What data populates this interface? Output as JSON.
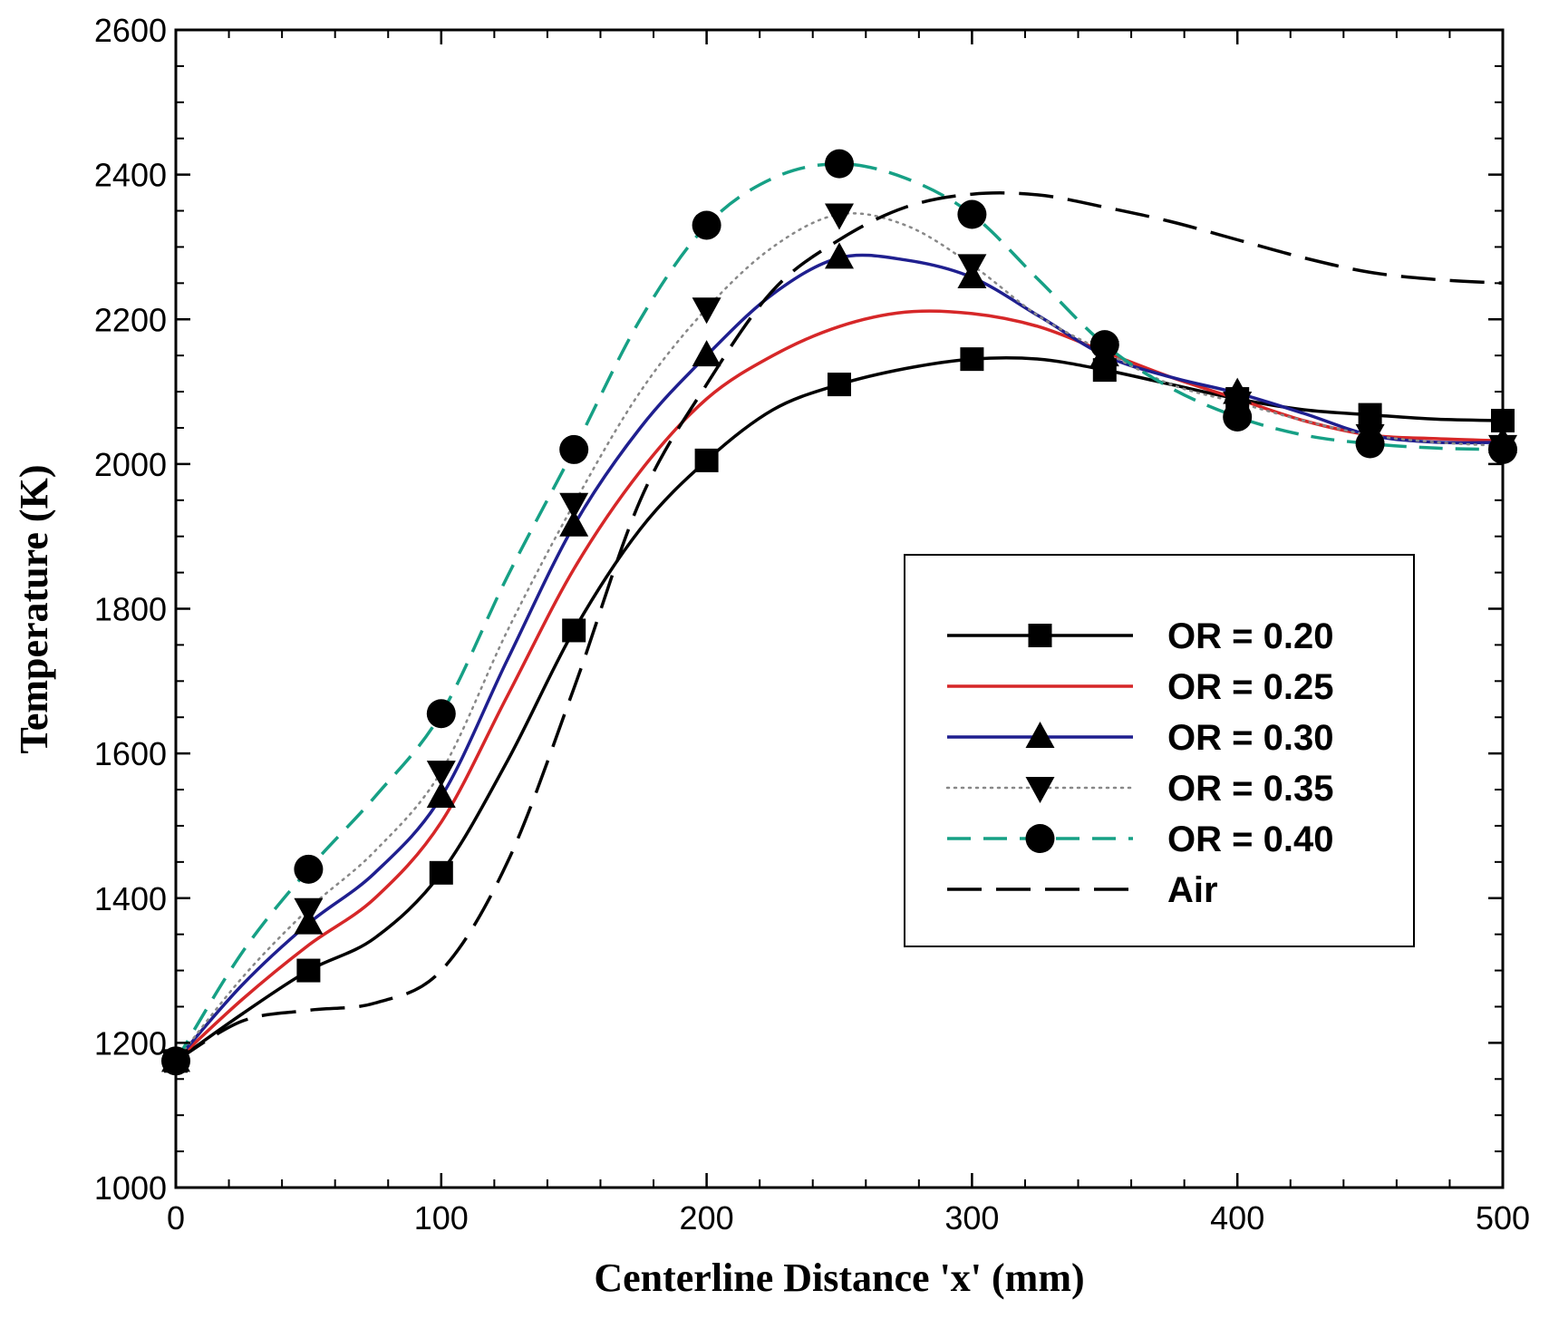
{
  "chart_data": {
    "type": "line",
    "title": "",
    "xlabel": "Centerline Distance 'x' (mm)",
    "ylabel": "Temperature (K)",
    "xlim": [
      0,
      500
    ],
    "ylim": [
      1000,
      2600
    ],
    "xticks": [
      0,
      100,
      200,
      300,
      400,
      500
    ],
    "yticks": [
      1000,
      1200,
      1400,
      1600,
      1800,
      2000,
      2200,
      2400,
      2600
    ],
    "x_minor_step": 20,
    "y_minor_step": 50,
    "grid": false,
    "legend_position": "center-right",
    "marker_x": [
      0,
      50,
      100,
      150,
      200,
      250,
      300,
      350,
      400,
      450,
      500
    ],
    "series": [
      {
        "name": "OR = 0.20",
        "color": "#000000",
        "line": "solid",
        "marker": "square",
        "x": [
          0,
          25,
          50,
          75,
          100,
          125,
          150,
          175,
          200,
          225,
          250,
          275,
          300,
          325,
          350,
          375,
          400,
          425,
          450,
          475,
          500
        ],
        "values": [
          1175,
          1240,
          1300,
          1345,
          1435,
          1590,
          1770,
          1910,
          2005,
          2075,
          2110,
          2132,
          2145,
          2145,
          2130,
          2110,
          2090,
          2075,
          2068,
          2062,
          2060
        ]
      },
      {
        "name": "OR = 0.25",
        "color": "#d62728",
        "line": "solid",
        "marker": "none",
        "x": [
          0,
          25,
          50,
          75,
          100,
          125,
          150,
          175,
          200,
          225,
          250,
          275,
          300,
          325,
          350,
          375,
          400,
          425,
          450,
          475,
          500
        ],
        "values": [
          1175,
          1260,
          1335,
          1400,
          1505,
          1680,
          1855,
          1990,
          2090,
          2150,
          2190,
          2210,
          2208,
          2190,
          2155,
          2120,
          2090,
          2060,
          2040,
          2035,
          2032
        ]
      },
      {
        "name": "OR = 0.30",
        "color": "#1f1f8f",
        "line": "solid",
        "marker": "triangle-up",
        "x": [
          0,
          25,
          50,
          75,
          100,
          125,
          150,
          175,
          200,
          225,
          250,
          275,
          300,
          325,
          350,
          375,
          400,
          425,
          450,
          475,
          500
        ],
        "values": [
          1175,
          1280,
          1365,
          1435,
          1540,
          1730,
          1915,
          2050,
          2150,
          2235,
          2285,
          2282,
          2258,
          2205,
          2150,
          2120,
          2098,
          2070,
          2040,
          2030,
          2030
        ]
      },
      {
        "name": "OR = 0.35",
        "color": "#888888",
        "line": "dotted",
        "marker": "triangle-down",
        "x": [
          0,
          25,
          50,
          75,
          100,
          125,
          150,
          175,
          200,
          225,
          250,
          275,
          300,
          325,
          350,
          375,
          400,
          425,
          450,
          475,
          500
        ],
        "values": [
          1175,
          1290,
          1385,
          1465,
          1575,
          1770,
          1945,
          2100,
          2215,
          2300,
          2345,
          2330,
          2275,
          2205,
          2155,
          2110,
          2085,
          2060,
          2040,
          2030,
          2025
        ]
      },
      {
        "name": "OR = 0.40",
        "color": "#16a085",
        "line": "dashed",
        "marker": "circle",
        "x": [
          0,
          25,
          50,
          75,
          100,
          125,
          150,
          175,
          200,
          225,
          250,
          275,
          300,
          325,
          350,
          375,
          400,
          425,
          450,
          475,
          500
        ],
        "values": [
          1175,
          1325,
          1440,
          1540,
          1655,
          1845,
          2020,
          2200,
          2330,
          2395,
          2415,
          2395,
          2345,
          2255,
          2165,
          2105,
          2065,
          2040,
          2028,
          2022,
          2020
        ]
      },
      {
        "name": "Air",
        "color": "#000000",
        "line": "longdash",
        "marker": "none",
        "x": [
          0,
          25,
          50,
          75,
          100,
          125,
          150,
          175,
          200,
          225,
          250,
          275,
          300,
          325,
          350,
          375,
          400,
          425,
          450,
          475,
          500
        ],
        "values": [
          1175,
          1230,
          1245,
          1255,
          1300,
          1450,
          1690,
          1950,
          2110,
          2240,
          2310,
          2355,
          2373,
          2372,
          2355,
          2335,
          2310,
          2285,
          2265,
          2255,
          2250
        ]
      }
    ]
  }
}
